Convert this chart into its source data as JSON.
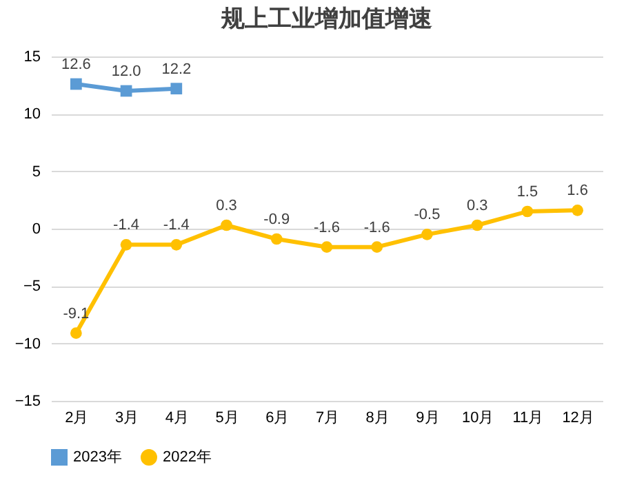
{
  "chart_data": {
    "type": "line",
    "title": "规上工业增加值增速",
    "categories": [
      "2月",
      "3月",
      "4月",
      "5月",
      "6月",
      "7月",
      "8月",
      "9月",
      "10月",
      "11月",
      "12月"
    ],
    "series": [
      {
        "name": "2023年",
        "color": "#5b9bd5",
        "marker": "square",
        "values": [
          12.6,
          12.0,
          12.2,
          null,
          null,
          null,
          null,
          null,
          null,
          null,
          null
        ],
        "value_labels": [
          "12.6",
          "12.0",
          "12.2",
          null,
          null,
          null,
          null,
          null,
          null,
          null,
          null
        ]
      },
      {
        "name": "2022年",
        "color": "#ffc000",
        "marker": "circle",
        "values": [
          -9.1,
          -1.4,
          -1.4,
          0.3,
          -0.9,
          -1.6,
          -1.6,
          -0.5,
          0.3,
          1.5,
          1.6
        ]
      }
    ],
    "ylim": [
      -15,
      15
    ],
    "yticks": [
      -15,
      -10,
      -5,
      0,
      5,
      10,
      15
    ],
    "grid": "y",
    "legend": "bottom",
    "data_labels": true
  }
}
